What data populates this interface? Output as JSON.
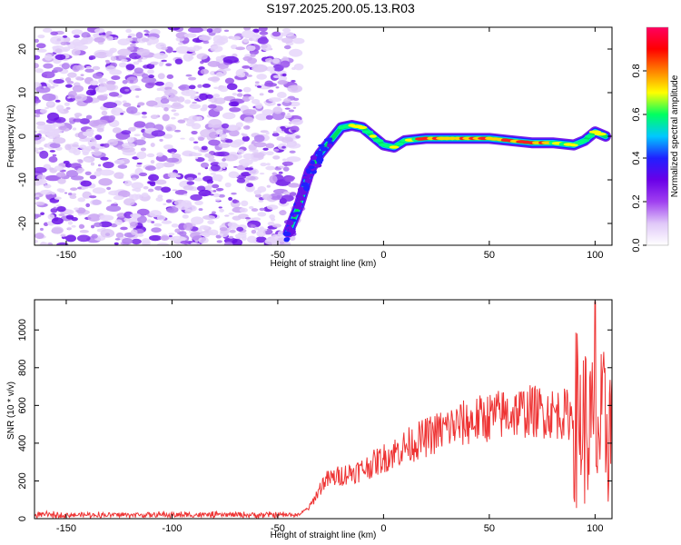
{
  "title": "S197.2025.200.05.13.R03",
  "chart_data": [
    {
      "type": "heatmap",
      "xlabel": "Height of straight line (km)",
      "ylabel": "Frequency (Hz)",
      "xlim": [
        -165,
        108
      ],
      "ylim": [
        -25,
        25
      ],
      "xticks": [
        -150,
        -100,
        -50,
        0,
        50,
        100
      ],
      "yticks": [
        -20,
        -10,
        0,
        10,
        20
      ],
      "colorbar": {
        "label": "Normalized spectral amplitude",
        "range": [
          0,
          1
        ],
        "ticks": [
          "0.0",
          "0.2",
          "0.4",
          "0.6",
          "0.8"
        ],
        "colors": [
          "#ffffff",
          "#e0c8f8",
          "#a040f0",
          "#6a00e8",
          "#2020ff",
          "#00c8ff",
          "#00ff60",
          "#ffff00",
          "#ff8000",
          "#ff0000",
          "#ff0060"
        ]
      },
      "noise_region_x": [
        -165,
        -40
      ],
      "signal_track": [
        {
          "x": -45,
          "y": -22
        },
        {
          "x": -40,
          "y": -16
        },
        {
          "x": -35,
          "y": -8
        },
        {
          "x": -30,
          "y": -4
        },
        {
          "x": -25,
          "y": -1
        },
        {
          "x": -20,
          "y": 2
        },
        {
          "x": -15,
          "y": 2.5
        },
        {
          "x": -10,
          "y": 2
        },
        {
          "x": -5,
          "y": 0
        },
        {
          "x": 0,
          "y": -2
        },
        {
          "x": 5,
          "y": -2.5
        },
        {
          "x": 10,
          "y": -1
        },
        {
          "x": 20,
          "y": -0.5
        },
        {
          "x": 30,
          "y": -0.5
        },
        {
          "x": 40,
          "y": -0.5
        },
        {
          "x": 50,
          "y": -0.5
        },
        {
          "x": 60,
          "y": -1
        },
        {
          "x": 70,
          "y": -1.5
        },
        {
          "x": 80,
          "y": -1.5
        },
        {
          "x": 90,
          "y": -2
        },
        {
          "x": 95,
          "y": -1
        },
        {
          "x": 100,
          "y": 1
        },
        {
          "x": 105,
          "y": 0
        }
      ]
    },
    {
      "type": "line",
      "xlabel": "Height of straight line (km)",
      "ylabel": "SNR (10 * v/v)",
      "xlim": [
        -165,
        108
      ],
      "ylim": [
        0,
        1160
      ],
      "xticks": [
        -150,
        -100,
        -50,
        0,
        50,
        100
      ],
      "yticks": [
        0,
        200,
        400,
        600,
        800,
        1000
      ],
      "color": "#ee3333",
      "envelope": [
        {
          "x": -165,
          "y": 20
        },
        {
          "x": -40,
          "y": 20
        },
        {
          "x": -35,
          "y": 60
        },
        {
          "x": -28,
          "y": 200
        },
        {
          "x": -20,
          "y": 230
        },
        {
          "x": -10,
          "y": 260
        },
        {
          "x": 0,
          "y": 320
        },
        {
          "x": 10,
          "y": 380
        },
        {
          "x": 20,
          "y": 430
        },
        {
          "x": 30,
          "y": 480
        },
        {
          "x": 40,
          "y": 510
        },
        {
          "x": 50,
          "y": 540
        },
        {
          "x": 60,
          "y": 560
        },
        {
          "x": 70,
          "y": 570
        },
        {
          "x": 80,
          "y": 560
        },
        {
          "x": 90,
          "y": 550
        },
        {
          "x": 95,
          "y": 500
        },
        {
          "x": 100,
          "y": 450
        },
        {
          "x": 108,
          "y": 500
        }
      ],
      "peak": {
        "x": 100,
        "y": 1150
      }
    }
  ]
}
